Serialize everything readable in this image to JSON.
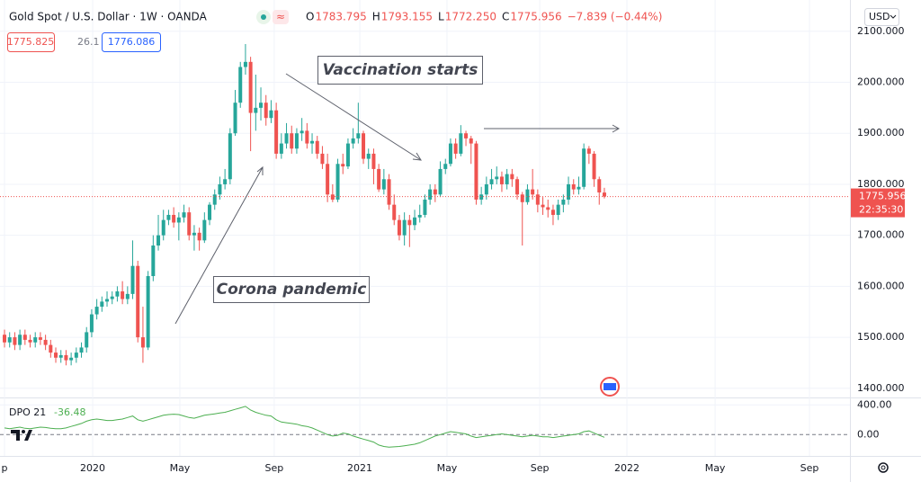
{
  "chart_data": [
    {
      "type": "candlestick",
      "title": "Gold Spot / U.S. Dollar · 1W · OANDA",
      "ohlc": [
        {
          "k": "O",
          "v": "1783.795"
        },
        {
          "k": "H",
          "v": "1793.155"
        },
        {
          "k": "L",
          "v": "1772.250"
        },
        {
          "k": "C",
          "v": "1775.956"
        }
      ],
      "change": "−7.839 (−0.44%)",
      "buttons": [
        "1775.825",
        "26.1",
        "1776.086"
      ],
      "currency": "USD",
      "price_label": "1775.956",
      "countdown": "22:35:30",
      "annotations": [
        "Vaccination starts",
        "Corona pandemic"
      ],
      "up_color": "#26a69a",
      "down_color": "#ef5350",
      "open": [
        1505,
        1490,
        1500,
        1485,
        1505,
        1495,
        1490,
        1500,
        1495,
        1485,
        1470,
        1460,
        1465,
        1455,
        1460,
        1470,
        1480,
        1510,
        1545,
        1560,
        1570,
        1575,
        1580,
        1590,
        1575,
        1585,
        1640,
        1500,
        1480,
        1620,
        1680,
        1700,
        1730,
        1740,
        1725,
        1735,
        1745,
        1700,
        1705,
        1690,
        1730,
        1760,
        1780,
        1800,
        1810,
        1900,
        1960,
        2030,
        2040,
        1940,
        1950,
        1960,
        1930,
        1945,
        1860,
        1880,
        1900,
        1870,
        1900,
        1905,
        1880,
        1885,
        1860,
        1840,
        1780,
        1770,
        1840,
        1835,
        1880,
        1890,
        1900,
        1850,
        1860,
        1830,
        1790,
        1810,
        1760,
        1730,
        1700,
        1730,
        1720,
        1735,
        1740,
        1770,
        1790,
        1780,
        1830,
        1840,
        1880,
        1860,
        1900,
        1890,
        1880,
        1770,
        1780,
        1800,
        1810,
        1815,
        1800,
        1820,
        1810,
        1780,
        1765,
        1790,
        1780,
        1760,
        1755,
        1750,
        1740,
        1760,
        1770,
        1800,
        1790,
        1795,
        1870,
        1860,
        1810,
        1783.795
      ],
      "high": [
        1515,
        1510,
        1510,
        1515,
        1515,
        1505,
        1510,
        1510,
        1505,
        1495,
        1480,
        1475,
        1475,
        1470,
        1480,
        1490,
        1520,
        1555,
        1575,
        1580,
        1590,
        1590,
        1600,
        1610,
        1600,
        1690,
        1650,
        1560,
        1630,
        1700,
        1740,
        1750,
        1750,
        1755,
        1745,
        1760,
        1755,
        1720,
        1715,
        1745,
        1765,
        1790,
        1815,
        1830,
        1910,
        1985,
        2040,
        2075,
        2050,
        2015,
        1990,
        1975,
        1965,
        1960,
        1900,
        1920,
        1915,
        1910,
        1930,
        1920,
        1900,
        1895,
        1875,
        1860,
        1800,
        1850,
        1860,
        1890,
        1910,
        1960,
        1905,
        1870,
        1870,
        1840,
        1830,
        1820,
        1780,
        1740,
        1745,
        1740,
        1750,
        1760,
        1780,
        1800,
        1800,
        1845,
        1850,
        1890,
        1890,
        1916,
        1905,
        1895,
        1885,
        1795,
        1815,
        1830,
        1835,
        1825,
        1830,
        1830,
        1815,
        1785,
        1800,
        1830,
        1790,
        1775,
        1770,
        1760,
        1770,
        1780,
        1815,
        1810,
        1815,
        1880,
        1875,
        1865,
        1815,
        1793.155
      ],
      "low": [
        1480,
        1480,
        1475,
        1475,
        1485,
        1480,
        1480,
        1485,
        1475,
        1460,
        1450,
        1450,
        1445,
        1445,
        1450,
        1460,
        1470,
        1500,
        1535,
        1550,
        1560,
        1565,
        1570,
        1565,
        1565,
        1575,
        1490,
        1450,
        1475,
        1610,
        1670,
        1690,
        1720,
        1715,
        1690,
        1725,
        1690,
        1670,
        1670,
        1685,
        1720,
        1750,
        1770,
        1790,
        1800,
        1895,
        1950,
        2015,
        1865,
        1905,
        1925,
        1915,
        1920,
        1850,
        1850,
        1870,
        1860,
        1860,
        1885,
        1870,
        1860,
        1850,
        1830,
        1765,
        1765,
        1765,
        1820,
        1830,
        1870,
        1880,
        1840,
        1830,
        1800,
        1785,
        1780,
        1750,
        1720,
        1690,
        1680,
        1677,
        1710,
        1725,
        1735,
        1760,
        1765,
        1775,
        1820,
        1835,
        1850,
        1855,
        1875,
        1840,
        1760,
        1760,
        1770,
        1790,
        1800,
        1785,
        1790,
        1795,
        1770,
        1680,
        1760,
        1770,
        1745,
        1740,
        1735,
        1720,
        1730,
        1745,
        1760,
        1780,
        1780,
        1790,
        1840,
        1795,
        1760,
        1772.25
      ],
      "close": [
        1490,
        1500,
        1485,
        1505,
        1495,
        1490,
        1500,
        1495,
        1485,
        1470,
        1460,
        1465,
        1455,
        1460,
        1470,
        1480,
        1510,
        1545,
        1560,
        1570,
        1575,
        1580,
        1590,
        1575,
        1585,
        1640,
        1500,
        1480,
        1620,
        1680,
        1700,
        1730,
        1740,
        1725,
        1735,
        1745,
        1700,
        1705,
        1690,
        1730,
        1760,
        1780,
        1800,
        1810,
        1900,
        1960,
        2030,
        2040,
        1940,
        1950,
        1960,
        1930,
        1945,
        1860,
        1880,
        1900,
        1870,
        1900,
        1905,
        1880,
        1885,
        1860,
        1840,
        1780,
        1770,
        1840,
        1835,
        1880,
        1890,
        1900,
        1850,
        1860,
        1830,
        1790,
        1810,
        1760,
        1730,
        1700,
        1730,
        1720,
        1735,
        1740,
        1770,
        1790,
        1780,
        1830,
        1840,
        1880,
        1860,
        1900,
        1890,
        1880,
        1770,
        1780,
        1800,
        1810,
        1815,
        1800,
        1820,
        1810,
        1780,
        1765,
        1790,
        1780,
        1760,
        1755,
        1750,
        1740,
        1760,
        1770,
        1800,
        1790,
        1795,
        1870,
        1860,
        1810,
        1784,
        1775.956
      ],
      "ylim": [
        1382,
        2112
      ],
      "yticks": [
        {
          "value": 2100,
          "label": "2100.000"
        },
        {
          "value": 2000,
          "label": "2000.000"
        },
        {
          "value": 1900,
          "label": "1900.000"
        },
        {
          "value": 1800,
          "label": "1800.000"
        },
        {
          "value": 1700,
          "label": "1700.000"
        },
        {
          "value": 1600,
          "label": "1600.000"
        },
        {
          "value": 1500,
          "label": "1500.000"
        },
        {
          "value": 1400,
          "label": "1400.000"
        }
      ],
      "xlim": [
        -0.88,
        164.9
      ],
      "xticks": [
        {
          "value": 0,
          "label": "p"
        },
        {
          "value": 17.2,
          "label": "2020"
        },
        {
          "value": 34.2,
          "label": "May"
        },
        {
          "value": 52.6,
          "label": "Sep"
        },
        {
          "value": 69.3,
          "label": "2021"
        },
        {
          "value": 86.3,
          "label": "May"
        },
        {
          "value": 104.4,
          "label": "Sep"
        },
        {
          "value": 121.4,
          "label": "2022"
        },
        {
          "value": 138.6,
          "label": "May"
        },
        {
          "value": 157,
          "label": "Sep"
        }
      ],
      "grid": true
    },
    {
      "type": "line",
      "series": [
        {
          "name": "DPO 21",
          "color": "#4caf50",
          "values": [
            90,
            80,
            90,
            100,
            85,
            80,
            90,
            100,
            95,
            85,
            80,
            80,
            90,
            110,
            130,
            150,
            180,
            200,
            210,
            200,
            190,
            190,
            200,
            210,
            230,
            250,
            200,
            180,
            200,
            220,
            240,
            260,
            270,
            275,
            270,
            250,
            230,
            220,
            240,
            260,
            270,
            280,
            290,
            300,
            320,
            340,
            360,
            380,
            330,
            300,
            280,
            260,
            250,
            200,
            170,
            160,
            150,
            140,
            120,
            110,
            90,
            60,
            30,
            0,
            -20,
            -10,
            20,
            10,
            -20,
            -40,
            -60,
            -80,
            -100,
            -140,
            -160,
            -170,
            -165,
            -160,
            -150,
            -140,
            -130,
            -110,
            -80,
            -50,
            -20,
            0,
            20,
            40,
            30,
            20,
            10,
            -20,
            -40,
            -30,
            -20,
            -10,
            0,
            10,
            0,
            -10,
            -20,
            -30,
            -20,
            -10,
            -20,
            -30,
            -30,
            -40,
            -30,
            -20,
            -10,
            0,
            10,
            40,
            50,
            20,
            -10,
            -36.48
          ]
        }
      ],
      "ylim": [
        -287,
        500
      ],
      "yticks": [
        {
          "value": 400,
          "label": "400.00"
        },
        {
          "value": 0,
          "label": "0.00"
        }
      ],
      "grid": true
    }
  ]
}
